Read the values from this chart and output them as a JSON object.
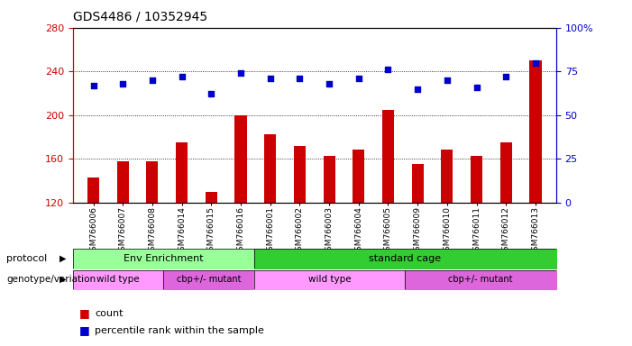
{
  "title": "GDS4486 / 10352945",
  "samples": [
    "GSM766006",
    "GSM766007",
    "GSM766008",
    "GSM766014",
    "GSM766015",
    "GSM766016",
    "GSM766001",
    "GSM766002",
    "GSM766003",
    "GSM766004",
    "GSM766005",
    "GSM766009",
    "GSM766010",
    "GSM766011",
    "GSM766012",
    "GSM766013"
  ],
  "counts": [
    143,
    158,
    158,
    175,
    130,
    200,
    182,
    172,
    163,
    168,
    205,
    155,
    168,
    163,
    175,
    250
  ],
  "percentiles": [
    67,
    68,
    70,
    72,
    62,
    74,
    71,
    71,
    68,
    71,
    76,
    65,
    70,
    66,
    72,
    80
  ],
  "ylim_left": [
    120,
    280
  ],
  "ylim_right": [
    0,
    100
  ],
  "yticks_left": [
    120,
    160,
    200,
    240,
    280
  ],
  "yticks_right": [
    0,
    25,
    50,
    75,
    100
  ],
  "bar_color": "#cc0000",
  "dot_color": "#0000cc",
  "env_color": "#99ff99",
  "std_color": "#33cc33",
  "wt_color": "#ff99ff",
  "mut_color": "#dd66dd",
  "legend_count_color": "#cc0000",
  "legend_dot_color": "#0000cc"
}
